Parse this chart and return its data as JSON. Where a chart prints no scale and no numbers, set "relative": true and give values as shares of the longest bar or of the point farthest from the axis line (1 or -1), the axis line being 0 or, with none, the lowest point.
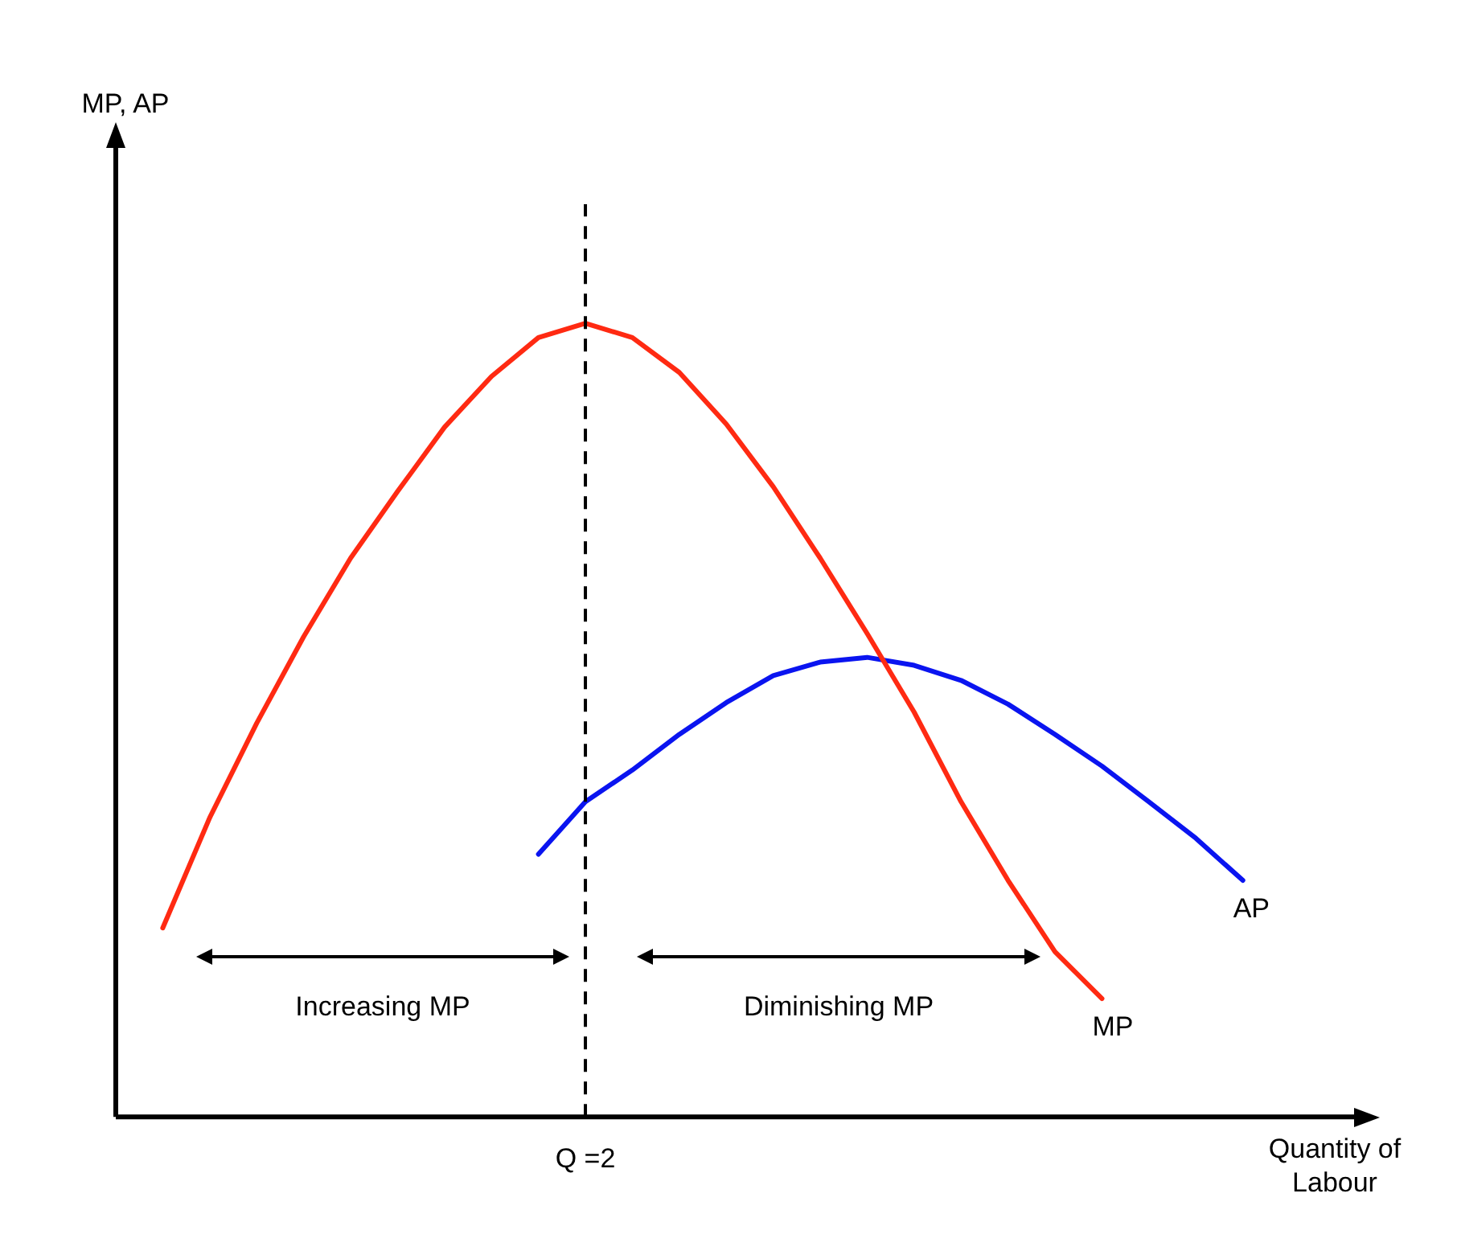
{
  "chart_data": {
    "type": "line",
    "relative": true,
    "xlabel": "Quantity of Labour",
    "legend": false,
    "marker": "none",
    "line_style": "solid",
    "categories": [
      null,
      null,
      null,
      null,
      null,
      null,
      null,
      null,
      null,
      null,
      null,
      null,
      null,
      null,
      null,
      null,
      null,
      null,
      null,
      null,
      null,
      null,
      null,
      null
    ],
    "series": [
      {
        "name": "MP",
        "color": "#ff2a12",
        "values": [
          0.238,
          0.377,
          0.496,
          0.605,
          0.704,
          0.788,
          0.869,
          0.933,
          0.982,
          1.0,
          0.982,
          0.938,
          0.873,
          0.794,
          0.704,
          0.609,
          0.51,
          0.397,
          0.298,
          0.208,
          0.149,
          null,
          null,
          null
        ]
      },
      {
        "name": "AP",
        "color": "#0a14f0",
        "values": [
          null,
          null,
          null,
          null,
          null,
          null,
          null,
          null,
          0.331,
          0.397,
          0.437,
          0.482,
          0.522,
          0.556,
          0.573,
          0.579,
          0.569,
          0.55,
          0.52,
          0.482,
          0.442,
          0.397,
          0.351,
          0.298
        ]
      }
    ],
    "annotations": [
      "Increasing MP",
      "Diminishing MP",
      "Q =2",
      "MP, AP"
    ]
  }
}
